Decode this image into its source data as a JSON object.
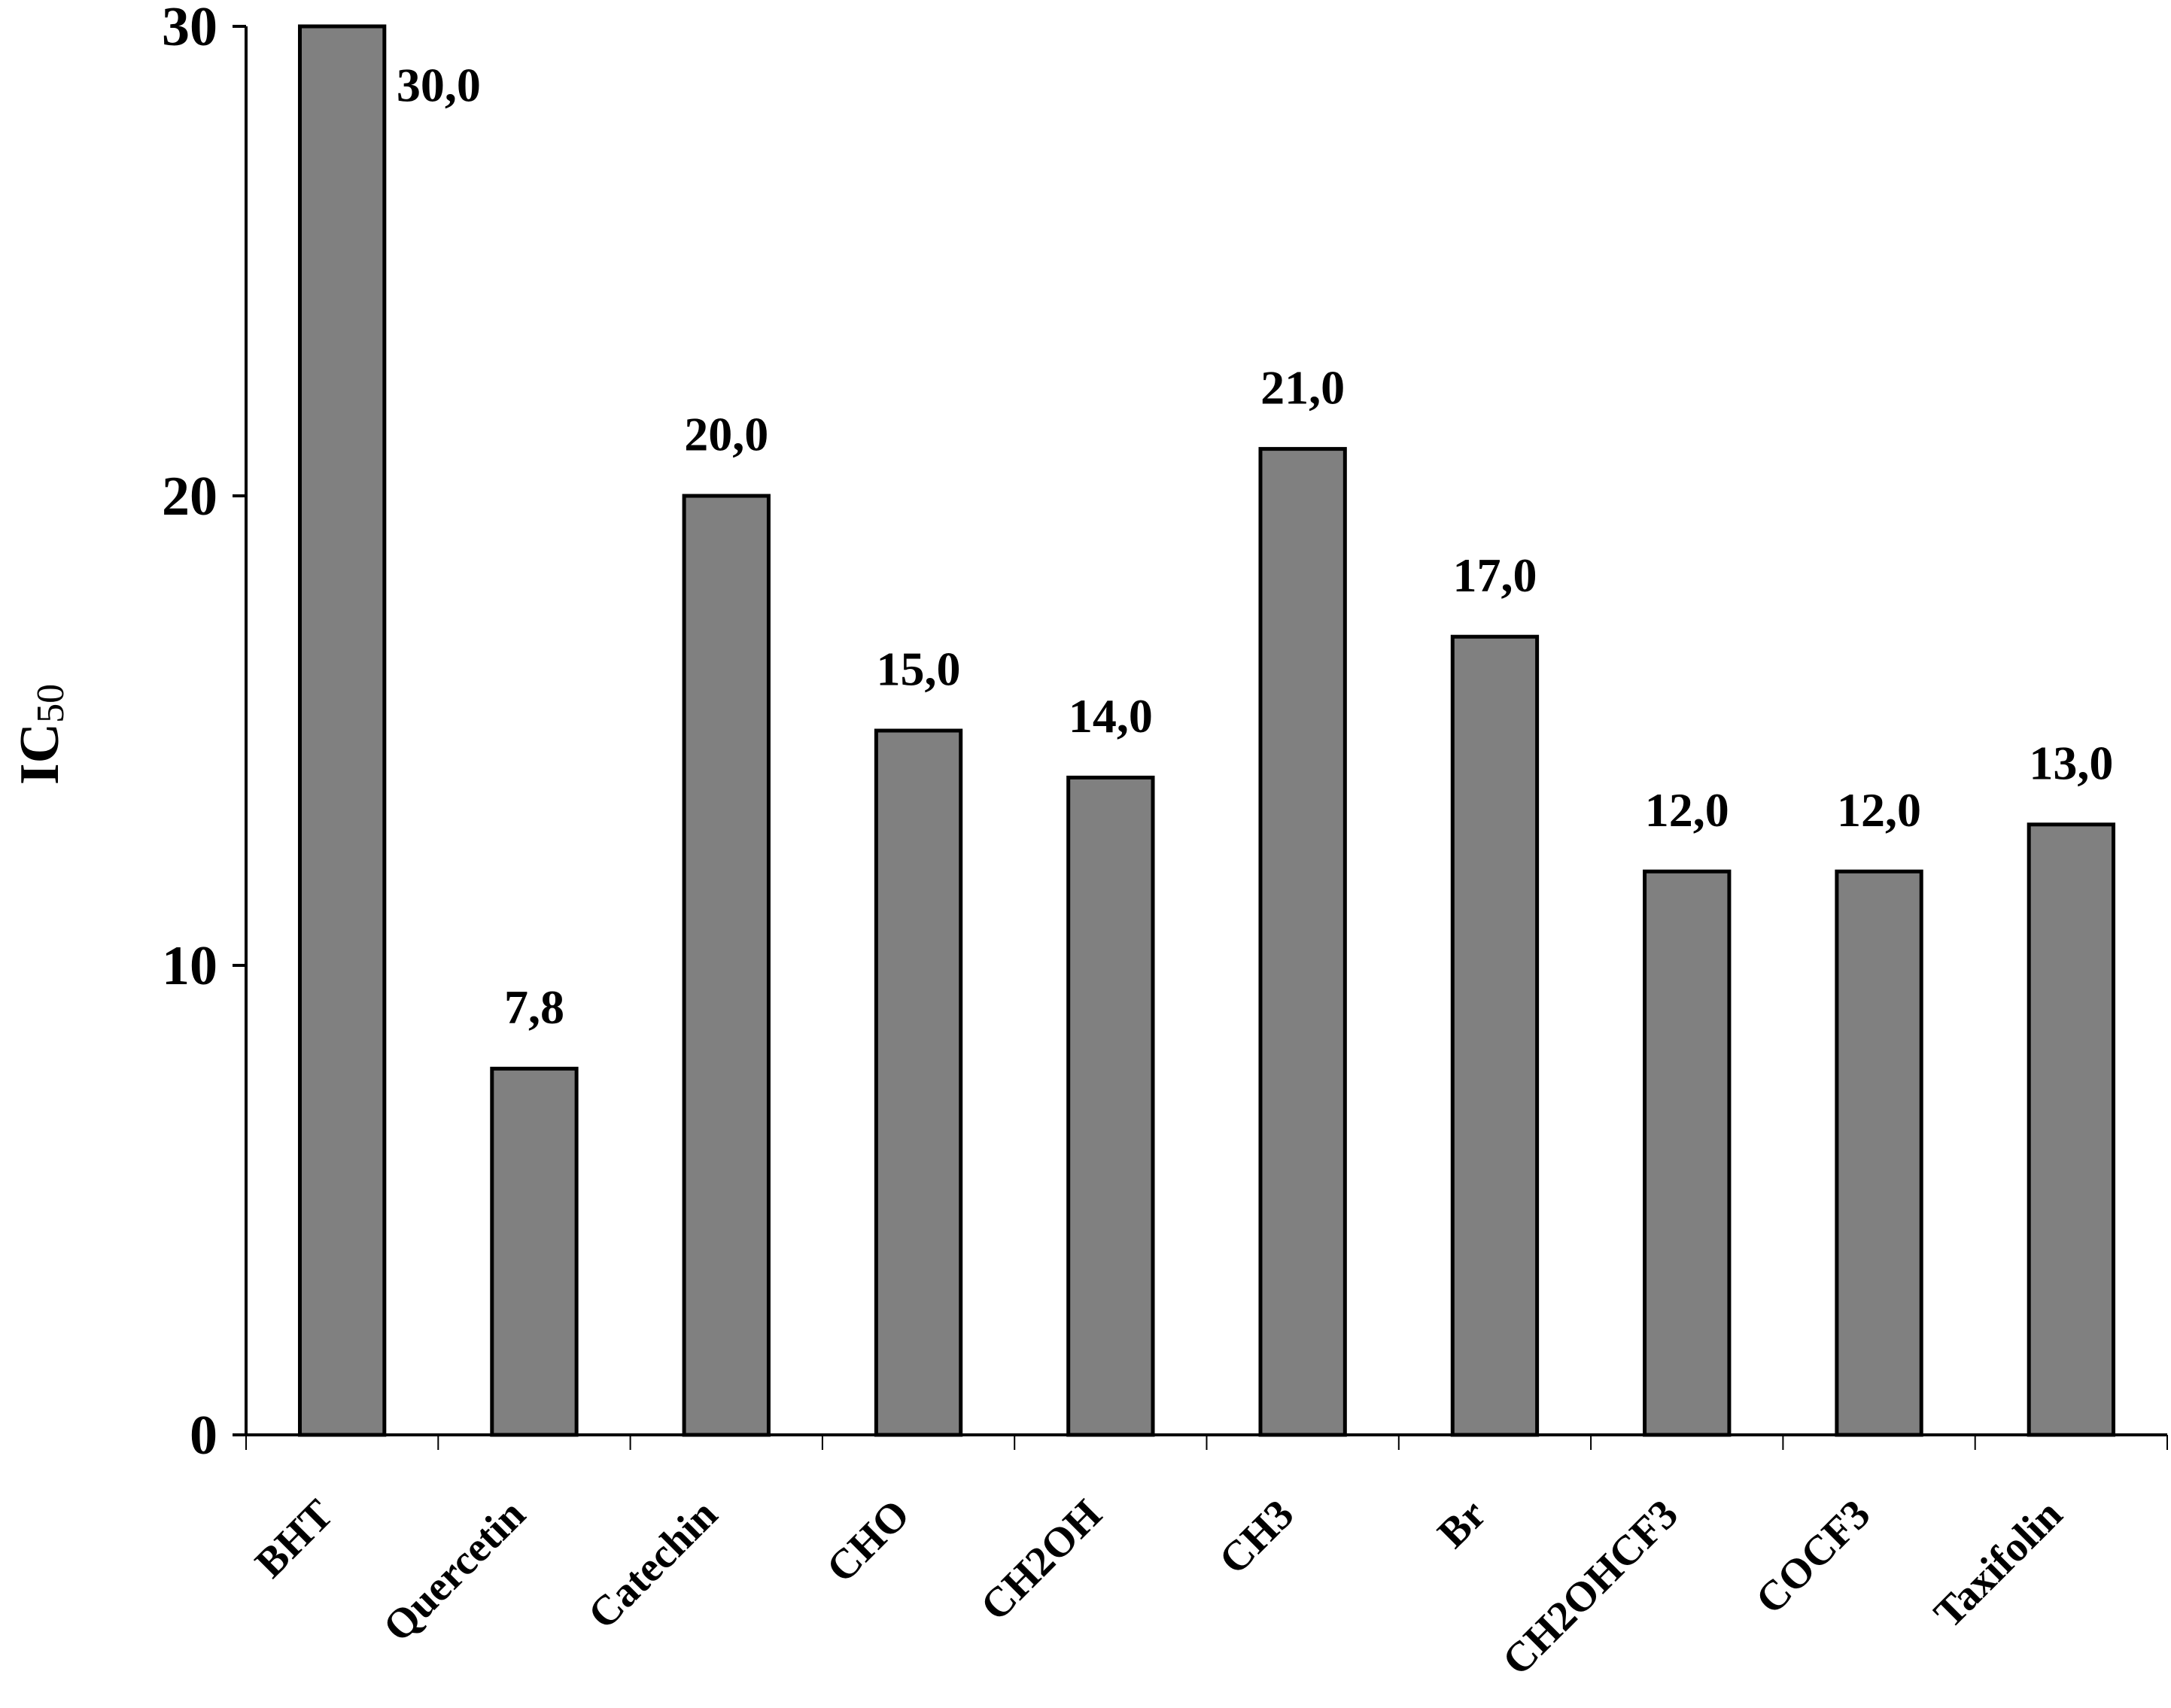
{
  "chart_data": {
    "type": "bar",
    "ylabel": "IC",
    "ylabel_subscript": "50",
    "categories": [
      "BHT",
      "Quercetin",
      "Catechin",
      "CHO",
      "CH2OH",
      "CH3",
      "Br",
      "CH2OHCF3",
      "COCF3",
      "Taxifolin"
    ],
    "values": [
      30,
      7.8,
      20,
      15,
      14,
      21,
      17,
      12,
      12,
      13
    ],
    "value_labels": [
      "30,0",
      "7,8",
      "20,0",
      "15,0",
      "14,0",
      "21,0",
      "17,0",
      "12,0",
      "12,0",
      "13,0"
    ],
    "color": "#808080",
    "ylim": [
      0,
      30
    ],
    "yticks": [
      0,
      10,
      20,
      30
    ],
    "grid": false
  }
}
